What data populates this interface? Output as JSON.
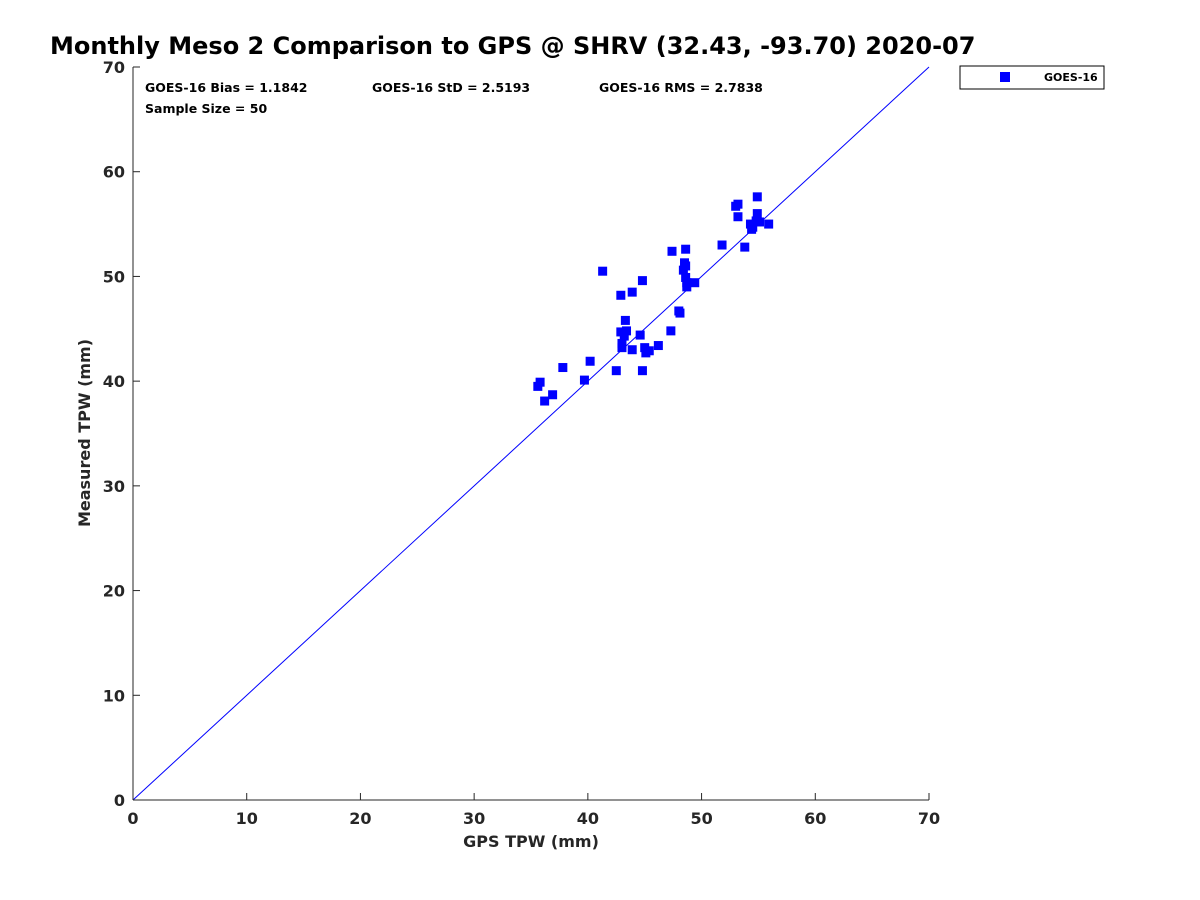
{
  "chart_data": {
    "type": "scatter",
    "title": "Monthly Meso 2 Comparison to GPS @ SHRV (32.43, -93.70) 2020-07",
    "xlabel": "GPS TPW (mm)",
    "ylabel": "Measured TPW (mm)",
    "xlim": [
      0,
      70
    ],
    "ylim": [
      0,
      70
    ],
    "xticks": [
      "0",
      "10",
      "20",
      "30",
      "40",
      "50",
      "60",
      "70"
    ],
    "yticks": [
      "0",
      "10",
      "20",
      "30",
      "40",
      "50",
      "60",
      "70"
    ],
    "grid": false,
    "legend_position": "top-right, outside plot",
    "reference_line": {
      "from": [
        0,
        0
      ],
      "to": [
        70,
        70
      ],
      "color": "#0000ff"
    },
    "annotations": {
      "bias": "GOES-16 Bias = 1.1842",
      "std": "GOES-16 StD = 2.5193",
      "rms": "GOES-16 RMS = 2.7838",
      "sample_size": "Sample Size = 50"
    },
    "series": [
      {
        "name": "GOES-16",
        "color": "#0000ff",
        "marker": "square",
        "points": [
          [
            35.6,
            39.5
          ],
          [
            35.8,
            39.9
          ],
          [
            36.2,
            38.1
          ],
          [
            36.9,
            38.7
          ],
          [
            37.8,
            41.3
          ],
          [
            39.7,
            40.1
          ],
          [
            40.2,
            41.9
          ],
          [
            41.3,
            50.5
          ],
          [
            42.5,
            41.0
          ],
          [
            42.9,
            48.2
          ],
          [
            42.9,
            44.7
          ],
          [
            43.0,
            43.6
          ],
          [
            43.0,
            43.2
          ],
          [
            43.2,
            44.3
          ],
          [
            43.3,
            45.8
          ],
          [
            43.4,
            44.8
          ],
          [
            43.9,
            43.0
          ],
          [
            43.9,
            48.5
          ],
          [
            44.6,
            44.4
          ],
          [
            44.8,
            49.6
          ],
          [
            44.8,
            41.0
          ],
          [
            45.0,
            43.2
          ],
          [
            45.1,
            42.7
          ],
          [
            45.4,
            42.9
          ],
          [
            46.2,
            43.4
          ],
          [
            47.3,
            44.8
          ],
          [
            47.4,
            52.4
          ],
          [
            48.0,
            46.7
          ],
          [
            48.1,
            46.5
          ],
          [
            48.4,
            50.6
          ],
          [
            48.5,
            51.3
          ],
          [
            48.6,
            52.6
          ],
          [
            48.6,
            51.0
          ],
          [
            48.6,
            49.9
          ],
          [
            48.7,
            49.0
          ],
          [
            48.7,
            49.4
          ],
          [
            49.4,
            49.4
          ],
          [
            51.8,
            53.0
          ],
          [
            53.0,
            56.7
          ],
          [
            53.2,
            56.9
          ],
          [
            53.2,
            55.7
          ],
          [
            53.8,
            52.8
          ],
          [
            54.3,
            55.0
          ],
          [
            54.4,
            54.5
          ],
          [
            54.5,
            54.7
          ],
          [
            54.8,
            55.3
          ],
          [
            54.9,
            56.0
          ],
          [
            54.9,
            57.6
          ],
          [
            55.1,
            55.2
          ],
          [
            55.9,
            55.0
          ]
        ]
      }
    ]
  }
}
